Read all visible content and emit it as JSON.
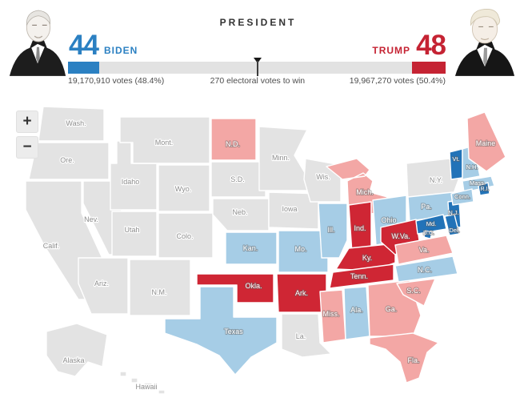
{
  "header": {
    "title": "PRESIDENT",
    "biden": {
      "name": "BIDEN",
      "electoral_votes": "44",
      "votes_caption": "19,170,910 votes (48.4%)",
      "color": "#2b80c2"
    },
    "trump": {
      "name": "TRUMP",
      "electoral_votes": "48",
      "votes_caption": "19,967,270 votes (50.4%)",
      "color": "#c52333"
    },
    "bar": {
      "total_ev": 538,
      "biden_ev": 44,
      "trump_ev": 48,
      "threshold_ev": 270,
      "threshold_caption": "270 electoral votes to win"
    }
  },
  "map": {
    "zoom_in_label": "+",
    "zoom_out_label": "−",
    "colors": {
      "none": "#e3e3e3",
      "dem_lead": "#a6cde6",
      "dem_solid": "#2273b8",
      "gop_lead": "#f3a7a5",
      "gop_solid": "#cf2634"
    },
    "states": [
      {
        "id": "wash",
        "label": "Wash.",
        "status": "none"
      },
      {
        "id": "ore",
        "label": "Ore.",
        "status": "none"
      },
      {
        "id": "calif",
        "label": "Calif.",
        "status": "none"
      },
      {
        "id": "nev",
        "label": "Nev.",
        "status": "none"
      },
      {
        "id": "idaho",
        "label": "Idaho",
        "status": "none"
      },
      {
        "id": "mont",
        "label": "Mont.",
        "status": "none"
      },
      {
        "id": "wyo",
        "label": "Wyo.",
        "status": "none"
      },
      {
        "id": "utah",
        "label": "Utah",
        "status": "none"
      },
      {
        "id": "colo",
        "label": "Colo.",
        "status": "none"
      },
      {
        "id": "ariz",
        "label": "Ariz.",
        "status": "none"
      },
      {
        "id": "nm",
        "label": "N.M.",
        "status": "none"
      },
      {
        "id": "nd",
        "label": "N.D.",
        "status": "gop_lead"
      },
      {
        "id": "sd",
        "label": "S.D.",
        "status": "none"
      },
      {
        "id": "neb",
        "label": "Neb.",
        "status": "none"
      },
      {
        "id": "kan",
        "label": "Kan.",
        "status": "dem_lead"
      },
      {
        "id": "okla",
        "label": "Okla.",
        "status": "gop_solid"
      },
      {
        "id": "texas",
        "label": "Texas",
        "status": "dem_lead"
      },
      {
        "id": "minn",
        "label": "Minn.",
        "status": "none"
      },
      {
        "id": "iowa",
        "label": "Iowa",
        "status": "none"
      },
      {
        "id": "wis",
        "label": "Wis.",
        "status": "none"
      },
      {
        "id": "mo",
        "label": "Mo.",
        "status": "dem_lead"
      },
      {
        "id": "ark",
        "label": "Ark.",
        "status": "gop_solid"
      },
      {
        "id": "la",
        "label": "La.",
        "status": "none"
      },
      {
        "id": "miss",
        "label": "Miss.",
        "status": "gop_lead"
      },
      {
        "id": "ala",
        "label": "Ala.",
        "status": "dem_lead"
      },
      {
        "id": "ga",
        "label": "Ga.",
        "status": "gop_lead"
      },
      {
        "id": "fla",
        "label": "Fla.",
        "status": "gop_lead"
      },
      {
        "id": "mich",
        "label": "Mich.",
        "status": "gop_lead"
      },
      {
        "id": "ill",
        "label": "Ill.",
        "status": "dem_lead"
      },
      {
        "id": "ind",
        "label": "Ind.",
        "status": "gop_solid"
      },
      {
        "id": "ohio",
        "label": "Ohio",
        "status": "dem_lead"
      },
      {
        "id": "ny",
        "label": "N.Y.",
        "status": "none"
      },
      {
        "id": "pa",
        "label": "Pa.",
        "status": "dem_lead"
      },
      {
        "id": "ky",
        "label": "Ky.",
        "status": "gop_solid"
      },
      {
        "id": "tenn",
        "label": "Tenn.",
        "status": "gop_solid"
      },
      {
        "id": "wva",
        "label": "W.Va.",
        "status": "gop_solid"
      },
      {
        "id": "va",
        "label": "Va.",
        "status": "gop_lead"
      },
      {
        "id": "nc",
        "label": "N.C.",
        "status": "dem_lead"
      },
      {
        "id": "sc",
        "label": "S.C.",
        "status": "gop_lead"
      },
      {
        "id": "nj",
        "label": "N.J.",
        "status": "dem_solid"
      },
      {
        "id": "md",
        "label": "Md.",
        "status": "dem_solid"
      },
      {
        "id": "de",
        "label": "Del.",
        "status": "dem_solid"
      },
      {
        "id": "dc",
        "label": "D.C.",
        "status": "dem_solid"
      },
      {
        "id": "vt",
        "label": "Vt.",
        "status": "dem_solid"
      },
      {
        "id": "nh",
        "label": "N.H.",
        "status": "dem_lead"
      },
      {
        "id": "mass",
        "label": "Mass.",
        "status": "dem_lead"
      },
      {
        "id": "ct",
        "label": "Conn.",
        "status": "dem_lead"
      },
      {
        "id": "ri",
        "label": "R.I.",
        "status": "dem_solid"
      },
      {
        "id": "maine",
        "label": "Maine",
        "status": "gop_lead"
      },
      {
        "id": "alaska",
        "label": "Alaska",
        "status": "none"
      },
      {
        "id": "hawaii",
        "label": "Hawaii",
        "status": "none"
      }
    ]
  }
}
